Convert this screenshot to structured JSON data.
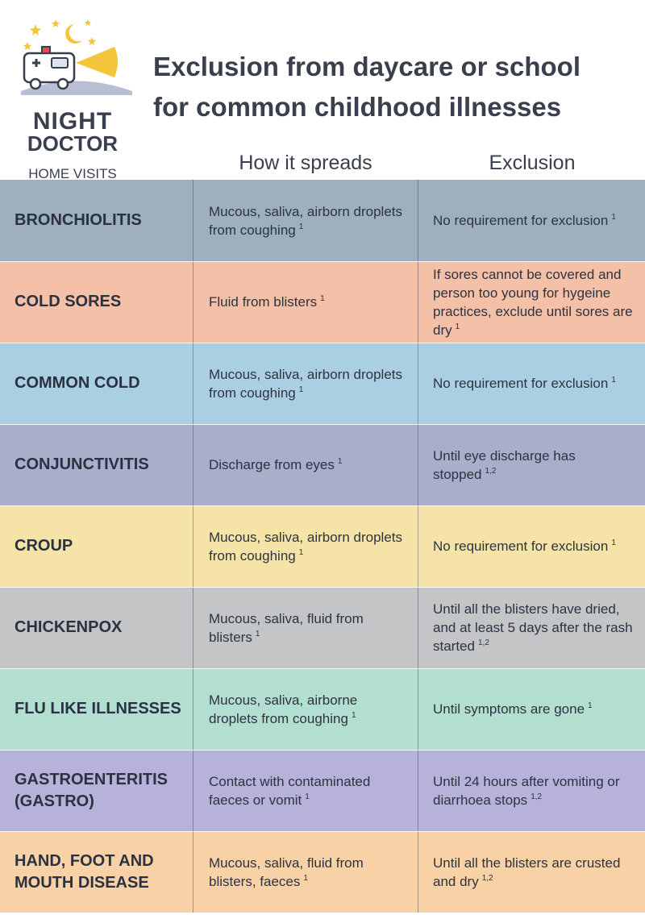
{
  "brand": {
    "name_line1": "NIGHT",
    "name_line2": "DOCTOR",
    "tagline": "HOME VISITS"
  },
  "title": {
    "line1": "Exclusion from daycare or school",
    "line2": "for common childhood illnesses"
  },
  "columns": {
    "spread": "How it spreads",
    "exclusion": "Exclusion"
  },
  "rows": [
    {
      "name": "BRONCHIOLITIS",
      "spread": "Mucous, saliva, airborn droplets from coughing",
      "spread_ref": "1",
      "exclusion": "No requirement for exclusion",
      "exclusion_ref": "1",
      "color": "#9eb0c0"
    },
    {
      "name": "COLD SORES",
      "spread": "Fluid from blisters",
      "spread_ref": "1",
      "exclusion": "If sores cannot be covered and person too young for hygeine practices, exclude until sores are dry",
      "exclusion_ref": "1",
      "color": "#f5c0a8"
    },
    {
      "name": "COMMON COLD",
      "spread": "Mucous, saliva, airborn droplets from coughing",
      "spread_ref": "1",
      "exclusion": "No requirement for exclusion",
      "exclusion_ref": "1",
      "color": "#abcfe2"
    },
    {
      "name": "CONJUNCTIVITIS",
      "spread": "Discharge from eyes",
      "spread_ref": "1",
      "exclusion": "Until eye discharge has stopped",
      "exclusion_ref": "1,2",
      "color": "#a9aecb"
    },
    {
      "name": "CROUP",
      "spread": "Mucous, saliva, airborn droplets from coughing",
      "spread_ref": "1",
      "exclusion": "No requirement for exclusion",
      "exclusion_ref": "1",
      "color": "#f6e3a8"
    },
    {
      "name": "CHICKENPOX",
      "spread": "Mucous, saliva, fluid from blisters",
      "spread_ref": "1",
      "exclusion": "Until all the blisters have dried, and at least 5 days after the rash started",
      "exclusion_ref": "1,2",
      "color": "#c3c5c7"
    },
    {
      "name": "FLU LIKE ILLNESSES",
      "spread": "Mucous, saliva, airborne droplets from coughing",
      "spread_ref": "1",
      "exclusion": "Until symptoms are gone",
      "exclusion_ref": "1",
      "color": "#b3dfd1"
    },
    {
      "name": "GASTROENTERITIS (GASTRO)",
      "spread": "Contact with contaminated faeces or vomit",
      "spread_ref": "1",
      "exclusion": "Until 24 hours after vomiting or diarrhoea stops",
      "exclusion_ref": "1,2",
      "color": "#b6b2da"
    },
    {
      "name": "HAND, FOOT AND MOUTH DISEASE",
      "spread": "Mucous, saliva, fluid from blisters, faeces",
      "spread_ref": "1",
      "exclusion": "Until all the blisters are crusted and dry",
      "exclusion_ref": "1,2",
      "color": "#f8d2a6"
    }
  ]
}
